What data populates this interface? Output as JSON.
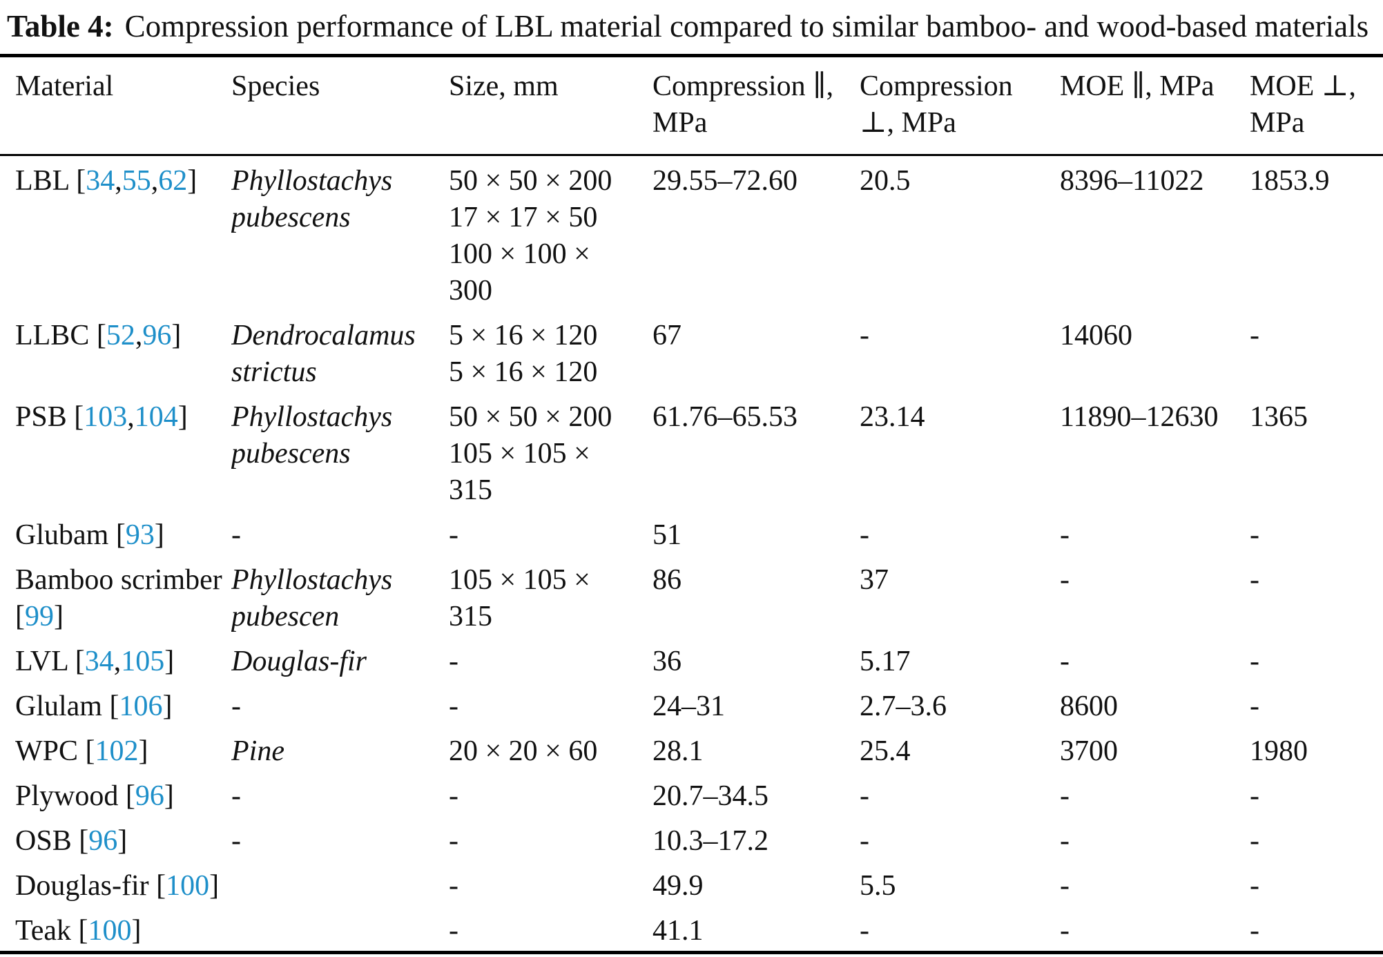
{
  "title": {
    "label": "Table 4:",
    "text": "Compression performance of LBL material compared to similar bamboo- and wood-based materials"
  },
  "colors": {
    "citation_blue": "#1e8fc9",
    "text": "#111111",
    "rule": "#000000"
  },
  "table": {
    "headers": [
      {
        "id": "material",
        "lines": [
          "Material"
        ]
      },
      {
        "id": "species",
        "lines": [
          "Species"
        ]
      },
      {
        "id": "size",
        "lines": [
          "Size, mm"
        ]
      },
      {
        "id": "comp_par",
        "lines": [
          "Compression ∥,",
          "MPa"
        ]
      },
      {
        "id": "comp_perp",
        "lines": [
          "Compression",
          "⊥, MPa"
        ]
      },
      {
        "id": "moe_par",
        "lines": [
          "MOE ∥, MPa"
        ]
      },
      {
        "id": "moe_perp",
        "lines": [
          "MOE ⊥,",
          "MPa"
        ]
      }
    ],
    "rows": [
      {
        "material": {
          "name": "LBL",
          "refs": [
            "34",
            "55",
            "62"
          ]
        },
        "species": "Phyllostachys pubescens",
        "sizes": [
          "50 × 50 × 200",
          "17 × 17 × 50",
          "100 × 100 × 300"
        ],
        "comp_par": "29.55–72.60",
        "comp_perp": "20.5",
        "moe_par": "8396–11022",
        "moe_perp": "1853.9"
      },
      {
        "material": {
          "name": "LLBC",
          "refs": [
            "52",
            "96"
          ]
        },
        "species": "Dendrocalamus strictus",
        "sizes": [
          "5 × 16 × 120",
          "5 × 16 × 120"
        ],
        "comp_par": "67",
        "comp_perp": "-",
        "moe_par": "14060",
        "moe_perp": "-"
      },
      {
        "material": {
          "name": "PSB",
          "refs": [
            "103",
            "104"
          ]
        },
        "species": "Phyllostachys pubescens",
        "sizes": [
          "50 × 50 × 200",
          "105 × 105 × 315"
        ],
        "comp_par": "61.76–65.53",
        "comp_perp": "23.14",
        "moe_par": "11890–12630",
        "moe_perp": "1365"
      },
      {
        "material": {
          "name": "Glubam",
          "refs": [
            "93"
          ]
        },
        "species": "-",
        "sizes": "-",
        "comp_par": "51",
        "comp_perp": "-",
        "moe_par": "-",
        "moe_perp": "-"
      },
      {
        "material": {
          "name": "Bamboo scrimber",
          "refs": [
            "99"
          ]
        },
        "species": "Phyllostachys pubescen",
        "sizes": [
          "105 × 105 × 315"
        ],
        "comp_par": "86",
        "comp_perp": "37",
        "moe_par": "-",
        "moe_perp": "-"
      },
      {
        "material": {
          "name": "LVL",
          "refs": [
            "34",
            "105"
          ]
        },
        "species": "Douglas-fir",
        "sizes": "-",
        "comp_par": "36",
        "comp_perp": "5.17",
        "moe_par": "-",
        "moe_perp": "-"
      },
      {
        "material": {
          "name": "Glulam",
          "refs": [
            "106"
          ]
        },
        "species": "-",
        "sizes": "-",
        "comp_par": "24–31",
        "comp_perp": "2.7–3.6",
        "moe_par": "8600",
        "moe_perp": "-"
      },
      {
        "material": {
          "name": "WPC",
          "refs": [
            "102"
          ]
        },
        "species": "Pine",
        "sizes": [
          "20 × 20 × 60"
        ],
        "comp_par": "28.1",
        "comp_perp": "25.4",
        "moe_par": "3700",
        "moe_perp": "1980"
      },
      {
        "material": {
          "name": "Plywood",
          "refs": [
            "96"
          ]
        },
        "species": "-",
        "sizes": "-",
        "comp_par": "20.7–34.5",
        "comp_perp": "-",
        "moe_par": "-",
        "moe_perp": "-"
      },
      {
        "material": {
          "name": "OSB",
          "refs": [
            "96"
          ]
        },
        "species": "-",
        "sizes": "-",
        "comp_par": "10.3–17.2",
        "comp_perp": "-",
        "moe_par": "-",
        "moe_perp": "-"
      },
      {
        "material": {
          "name": "Douglas-fir",
          "refs": [
            "100"
          ]
        },
        "species": "",
        "sizes": "-",
        "comp_par": "49.9",
        "comp_perp": "5.5",
        "moe_par": "-",
        "moe_perp": "-"
      },
      {
        "material": {
          "name": "Teak",
          "refs": [
            "100"
          ]
        },
        "species": "",
        "sizes": "-",
        "comp_par": "41.1",
        "comp_perp": "-",
        "moe_par": "-",
        "moe_perp": "-"
      }
    ]
  }
}
